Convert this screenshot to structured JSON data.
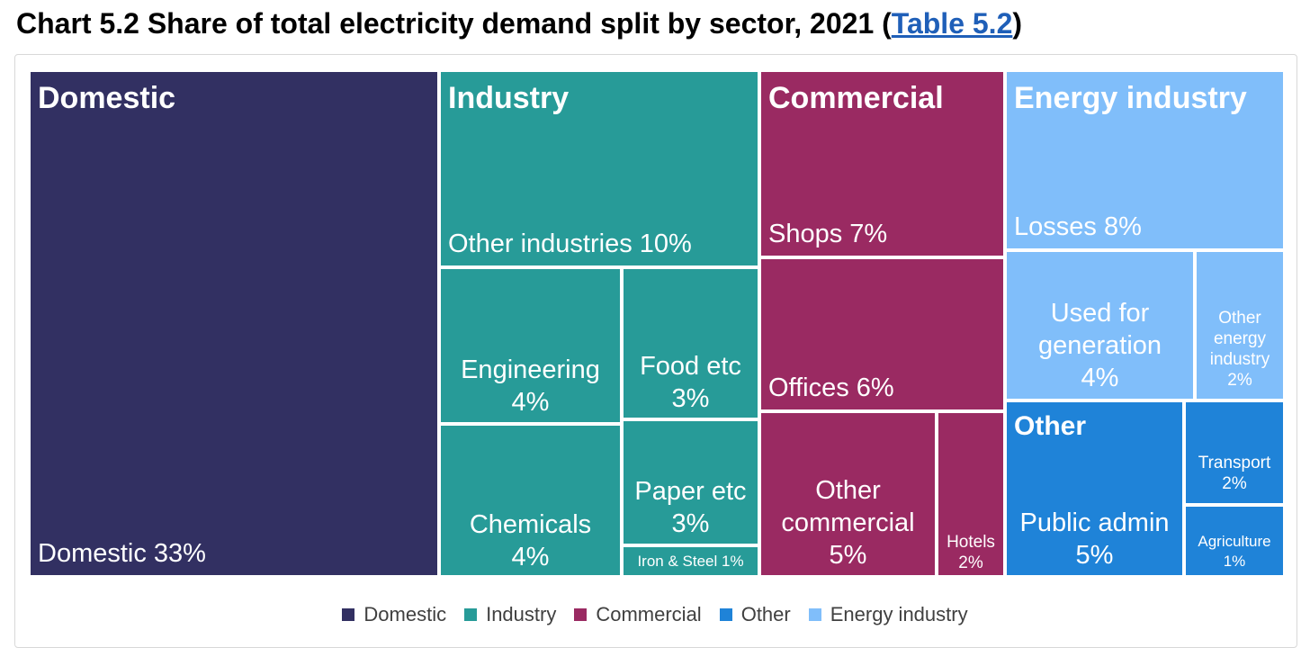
{
  "title_main": "Chart 5.2 Share of total electricity demand split by sector, 2021 (",
  "title_link": "Table 5.2",
  "title_end": ")",
  "chart_data": {
    "type": "treemap",
    "unit": "%",
    "groups": [
      {
        "name": "Domestic",
        "color": "#323062",
        "children": [
          {
            "label": "Domestic",
            "value": 33
          }
        ]
      },
      {
        "name": "Industry",
        "color": "#279b98",
        "children": [
          {
            "label": "Other industries",
            "value": 10
          },
          {
            "label": "Engineering",
            "value": 4
          },
          {
            "label": "Chemicals",
            "value": 4
          },
          {
            "label": "Food etc",
            "value": 3
          },
          {
            "label": "Paper etc",
            "value": 3
          },
          {
            "label": "Iron & Steel",
            "value": 1
          }
        ]
      },
      {
        "name": "Commercial",
        "color": "#9a2a62",
        "children": [
          {
            "label": "Shops",
            "value": 7
          },
          {
            "label": "Offices",
            "value": 6
          },
          {
            "label": "Other commercial",
            "value": 5
          },
          {
            "label": "Hotels",
            "value": 2
          }
        ]
      },
      {
        "name": "Energy industry",
        "color": "#80befa",
        "children": [
          {
            "label": "Losses",
            "value": 8
          },
          {
            "label": "Used for generation",
            "value": 4
          },
          {
            "label": "Other energy industry",
            "value": 2
          }
        ]
      },
      {
        "name": "Other",
        "color": "#1f83d8",
        "children": [
          {
            "label": "Public admin",
            "value": 5
          },
          {
            "label": "Transport",
            "value": 2
          },
          {
            "label": "Agriculture",
            "value": 1
          }
        ]
      }
    ],
    "legend": [
      "Domestic",
      "Industry",
      "Commercial",
      "Other",
      "Energy industry"
    ],
    "legend_position": "bottom"
  },
  "tiles": {
    "domestic": {
      "header": "Domestic",
      "label": "Domestic 33%"
    },
    "industry": {
      "header": "Industry",
      "label": "Other industries 10%"
    },
    "engineering": "Engineering\n4%",
    "food": "Food etc\n3%",
    "chemicals": "Chemicals\n4%",
    "paper": "Paper etc\n3%",
    "iron": "Iron & Steel 1%",
    "commercial": {
      "header": "Commercial",
      "label": "Shops 7%"
    },
    "offices": "Offices 6%",
    "other_commercial": "Other\ncommercial\n5%",
    "hotels": "Hotels\n2%",
    "energy": {
      "header": "Energy industry",
      "label": "Losses 8%"
    },
    "used_gen": "Used for\ngeneration\n4%",
    "other_energy": "Other\nenergy\nindustry\n2%",
    "other": {
      "header": "Other",
      "label": "Public admin\n5%"
    },
    "transport": "Transport\n2%",
    "agriculture": "Agriculture\n1%"
  }
}
